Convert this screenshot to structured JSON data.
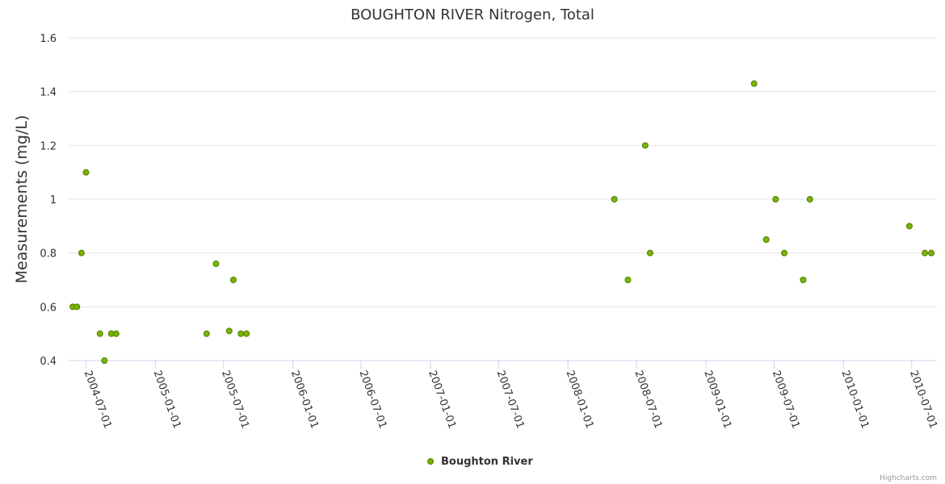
{
  "chart_data": {
    "type": "scatter",
    "title": "BOUGHTON RIVER Nitrogen, Total",
    "ylabel": "Measurements (mg/L)",
    "xlabel": "",
    "ylim": [
      0.4,
      1.6
    ],
    "yticks": [
      "0.4",
      "0.6",
      "0.8",
      "1",
      "1.2",
      "1.4",
      "1.6"
    ],
    "xticks": [
      "2004-07-01",
      "2005-01-01",
      "2005-07-01",
      "2006-01-01",
      "2006-07-01",
      "2007-01-01",
      "2007-07-01",
      "2008-01-01",
      "2008-07-01",
      "2009-01-01",
      "2009-07-01",
      "2010-01-01",
      "2010-07-01"
    ],
    "xlim": [
      "2004-05-16",
      "2010-09-06"
    ],
    "grid": true,
    "legend_position": "bottom-center",
    "series": [
      {
        "name": "Boughton River",
        "color": "#7cb500",
        "points": [
          {
            "x": "2004-05-27",
            "y": 0.6
          },
          {
            "x": "2004-06-07",
            "y": 0.6
          },
          {
            "x": "2004-06-19",
            "y": 0.8
          },
          {
            "x": "2004-07-01",
            "y": 1.1
          },
          {
            "x": "2004-08-07",
            "y": 0.5
          },
          {
            "x": "2004-08-19",
            "y": 0.4
          },
          {
            "x": "2004-09-06",
            "y": 0.5
          },
          {
            "x": "2004-09-19",
            "y": 0.5
          },
          {
            "x": "2005-05-17",
            "y": 0.5
          },
          {
            "x": "2005-06-11",
            "y": 0.76
          },
          {
            "x": "2005-07-16",
            "y": 0.51
          },
          {
            "x": "2005-07-27",
            "y": 0.7
          },
          {
            "x": "2005-08-16",
            "y": 0.5
          },
          {
            "x": "2005-08-31",
            "y": 0.5
          },
          {
            "x": "2008-05-03",
            "y": 1.0
          },
          {
            "x": "2008-06-08",
            "y": 0.7
          },
          {
            "x": "2008-07-24",
            "y": 1.2
          },
          {
            "x": "2008-08-06",
            "y": 0.8
          },
          {
            "x": "2009-05-09",
            "y": 1.43
          },
          {
            "x": "2009-06-10",
            "y": 0.85
          },
          {
            "x": "2009-07-05",
            "y": 1.0
          },
          {
            "x": "2009-07-28",
            "y": 0.8
          },
          {
            "x": "2009-09-16",
            "y": 0.7
          },
          {
            "x": "2009-10-04",
            "y": 1.0
          },
          {
            "x": "2010-06-25",
            "y": 0.9
          },
          {
            "x": "2010-08-05",
            "y": 0.8
          },
          {
            "x": "2010-08-22",
            "y": 0.8
          }
        ]
      }
    ]
  },
  "credits": "Highcharts.com"
}
